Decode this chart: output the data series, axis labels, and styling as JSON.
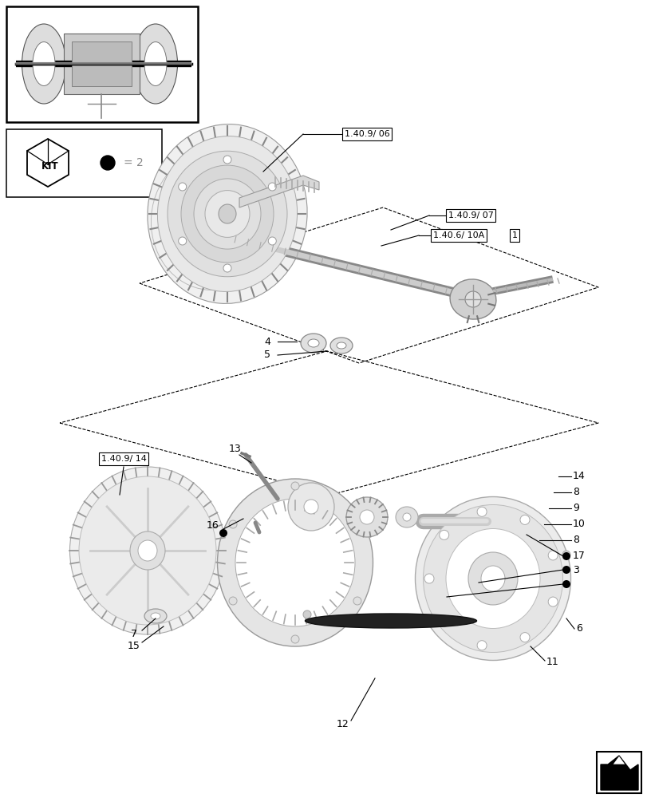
{
  "bg_color": "#ffffff",
  "fig_width": 8.12,
  "fig_height": 10.0,
  "dpi": 100,
  "line_color": "#333333",
  "labels": {
    "ref1": "1.40.9/ 06",
    "ref2": "1.40.9/ 07",
    "ref3": "1.40.6/ 10A",
    "ref4": "1",
    "ref5": "1.40.9/ 14",
    "n4": "4",
    "n5": "5",
    "n13": "13",
    "n14": "14",
    "n8a": "8",
    "n9": "9",
    "n10": "10",
    "n8b": "8",
    "n17": "17",
    "n3": "3",
    "n7": "7",
    "n15": "15",
    "n16": "16",
    "n6": "6",
    "n11": "11",
    "n12": "12"
  },
  "kit_text": "KIT",
  "bullet_eq": "= 2"
}
